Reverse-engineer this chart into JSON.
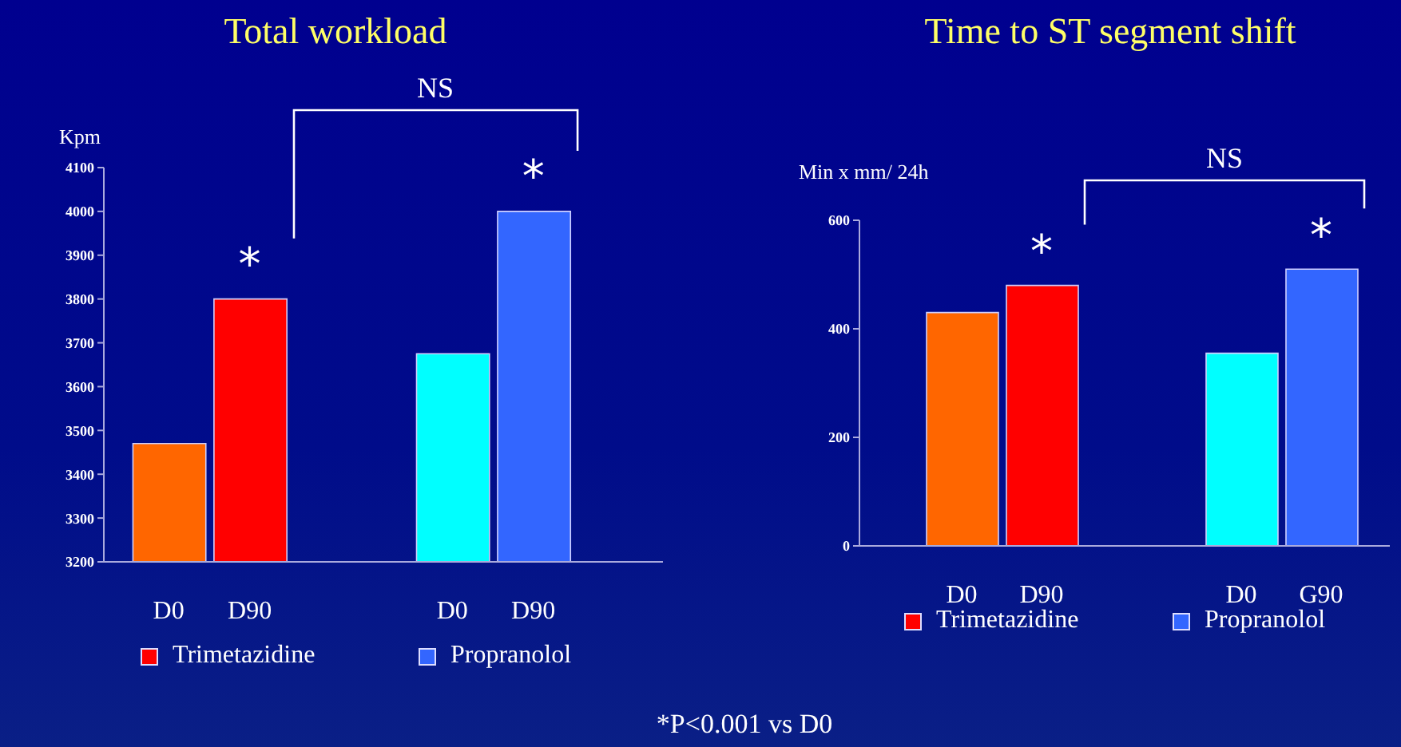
{
  "chart_data": [
    {
      "type": "bar",
      "title": "Total workload",
      "ylabel": "Kpm",
      "categories": [
        "D0",
        "D90",
        "D0",
        "D90"
      ],
      "series": [
        {
          "name": "Trimetazidine",
          "color": "#ff0000",
          "colors": [
            "#ff6600",
            "#ff0000",
            null,
            null
          ],
          "values": [
            3470,
            3800,
            null,
            null
          ]
        },
        {
          "name": "Propranolol",
          "color": "#3366ff",
          "colors": [
            null,
            null,
            "#00ffff",
            "#3366ff"
          ],
          "values": [
            null,
            null,
            3675,
            4000
          ]
        }
      ],
      "ylim": [
        3200,
        4100
      ],
      "yticks": [
        3200,
        3300,
        3400,
        3500,
        3600,
        3700,
        3800,
        3900,
        4000,
        4100
      ],
      "grid": false,
      "legend": "bottom",
      "annotations": [
        "*",
        "*",
        "NS",
        "*P<0.001 vs D0"
      ]
    },
    {
      "type": "bar",
      "title": "Time to ST segment shift",
      "ylabel": "Min x mm/ 24h",
      "categories": [
        "D0",
        "D90",
        "D0",
        "G90"
      ],
      "series": [
        {
          "name": "Trimetazidine",
          "color": "#ff0000",
          "colors": [
            "#ff6600",
            "#ff0000",
            null,
            null
          ],
          "values": [
            430,
            480,
            null,
            null
          ]
        },
        {
          "name": "Propranolol",
          "color": "#3366ff",
          "colors": [
            null,
            null,
            "#00ffff",
            "#3366ff"
          ],
          "values": [
            null,
            null,
            355,
            510
          ]
        }
      ],
      "ylim": [
        0,
        600
      ],
      "yticks": [
        0,
        200,
        400,
        600
      ],
      "grid": false,
      "legend": "bottom",
      "annotations": [
        "*",
        "*",
        "NS"
      ]
    }
  ]
}
